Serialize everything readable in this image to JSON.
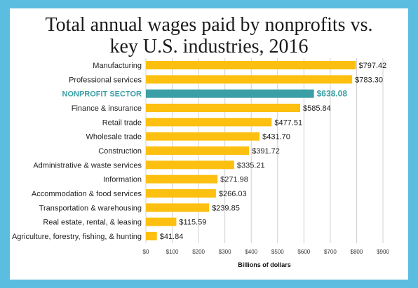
{
  "chart_data": {
    "type": "bar",
    "orientation": "horizontal",
    "title_lines": [
      "Total annual wages paid by nonprofits vs.",
      "key U.S. industries, 2016"
    ],
    "xlabel": "Billions of dollars",
    "ylabel": "",
    "xlim": [
      0,
      900
    ],
    "ticks": [
      "$0",
      "$100",
      "$200",
      "$300",
      "$400",
      "$500",
      "$600",
      "$700",
      "$800",
      "$900"
    ],
    "tick_values": [
      0,
      100,
      200,
      300,
      400,
      500,
      600,
      700,
      800,
      900
    ],
    "grid": true,
    "colors": {
      "bar": "#fdc010",
      "highlight": "#3aa0a6",
      "grid": "#d0d0d0"
    },
    "highlight_index": 2,
    "categories": [
      "Manufacturing",
      "Professional services",
      "NONPROFIT SECTOR",
      "Finance & insurance",
      "Retail trade",
      "Wholesale trade",
      "Construction",
      "Administrative & waste services",
      "Information",
      "Accommodation & food services",
      "Transportation & warehousing",
      "Real estate, rental, & leasing",
      "Agriculture, forestry, fishing, & hunting"
    ],
    "values": [
      797.42,
      783.3,
      638.08,
      585.84,
      477.51,
      431.7,
      391.72,
      335.21,
      271.98,
      266.03,
      239.85,
      115.59,
      41.84
    ],
    "value_labels": [
      "$797.42",
      "$783.30",
      "$638.08",
      "$585.84",
      "$477.51",
      "$431.70",
      "$391.72",
      "$335.21",
      "$271.98",
      "$266.03",
      "$239.85",
      "$115.59",
      "$41.84"
    ]
  }
}
